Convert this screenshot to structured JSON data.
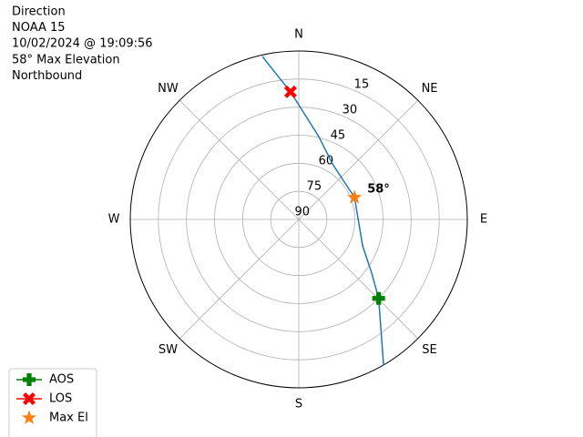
{
  "chart_data": {
    "type": "polar",
    "title_lines": [
      "Direction",
      "NOAA 15",
      "10/02/2024 @ 19:09:56",
      "58° Max Elevation",
      "Northbound"
    ],
    "theta_direction": "clockwise",
    "theta_zero": "N",
    "xticks": [
      {
        "value": 0,
        "label": "N"
      },
      {
        "value": 45,
        "label": "NE"
      },
      {
        "value": 90,
        "label": "E"
      },
      {
        "value": 135,
        "label": "SE"
      },
      {
        "value": 180,
        "label": "S"
      },
      {
        "value": 225,
        "label": "SW"
      },
      {
        "value": 270,
        "label": "W"
      },
      {
        "value": 315,
        "label": "NW"
      }
    ],
    "ylim": [
      90,
      0
    ],
    "yticks": [
      90,
      75,
      60,
      45,
      30,
      15
    ],
    "grid": true,
    "series": [
      {
        "color": "#1f77b4",
        "marker": "none",
        "linestyle": "solid",
        "x": [
          149.8,
          134.7,
          126.4,
          112.5,
          68.5,
          31.2,
          13.6,
          356.3,
          347.4
        ],
        "values": [
          0,
          30,
          41.6,
          53.1,
          58,
          55.3,
          44.5,
          21.7,
          0.8
        ]
      },
      {
        "name": "AOS",
        "color": "#008000",
        "marker": "plus",
        "linestyle": "solid",
        "x": [
          134.7
        ],
        "values": [
          30
        ]
      },
      {
        "name": "LOS",
        "color": "#ff0000",
        "marker": "x",
        "linestyle": "solid",
        "x": [
          356.3
        ],
        "values": [
          21.7
        ]
      },
      {
        "name": "Max El",
        "color": "#ff7f0e",
        "marker": "star",
        "linestyle": "none",
        "x": [
          68.5
        ],
        "values": [
          58
        ]
      }
    ],
    "annotations": [
      {
        "text": "58°",
        "series": 3
      }
    ],
    "legend": "lower left"
  }
}
